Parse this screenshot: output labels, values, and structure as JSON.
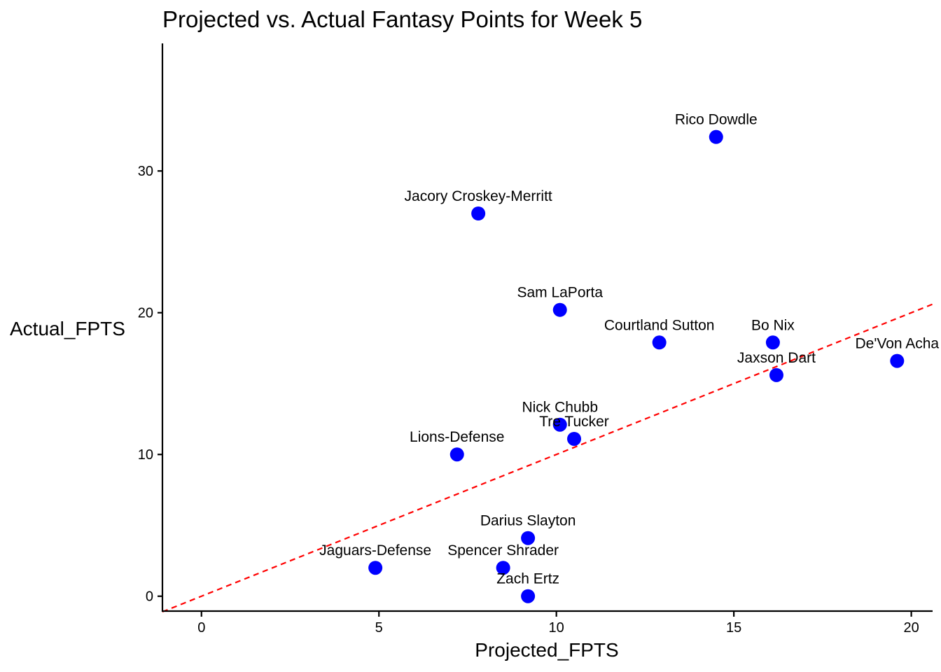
{
  "chart_data": {
    "type": "scatter",
    "title": "Projected vs. Actual Fantasy Points for Week 5",
    "xlabel": "Projected_FPTS",
    "ylabel": "Actual_FPTS",
    "xlim": [
      -1.1,
      20.6
    ],
    "ylim": [
      -1.1,
      39
    ],
    "x_ticks": [
      0,
      5,
      10,
      15,
      20
    ],
    "y_ticks": [
      0,
      10,
      20,
      30
    ],
    "grid": false,
    "point_color": "#0000ff",
    "reference_line": {
      "slope": 1,
      "intercept": 0,
      "color": "#ff0000",
      "style": "dashed"
    },
    "points": [
      {
        "label": "Rico Dowdle",
        "x": 14.5,
        "y": 32.4
      },
      {
        "label": "Jacory Croskey-Merritt",
        "x": 7.8,
        "y": 27.0
      },
      {
        "label": "Sam LaPorta",
        "x": 10.1,
        "y": 20.2
      },
      {
        "label": "Courtland Sutton",
        "x": 12.9,
        "y": 17.9
      },
      {
        "label": "Bo Nix",
        "x": 16.1,
        "y": 17.9
      },
      {
        "label": "De'Von Acha",
        "x": 19.6,
        "y": 16.6
      },
      {
        "label": "Jaxson Dart",
        "x": 16.2,
        "y": 15.6
      },
      {
        "label": "Nick Chubb",
        "x": 10.1,
        "y": 12.1
      },
      {
        "label": "Tre Tucker",
        "x": 10.5,
        "y": 11.1
      },
      {
        "label": "Lions-Defense",
        "x": 7.2,
        "y": 10.0
      },
      {
        "label": "Darius Slayton",
        "x": 9.2,
        "y": 4.1
      },
      {
        "label": "Jaguars-Defense",
        "x": 4.9,
        "y": 2.0
      },
      {
        "label": "Spencer Shrader",
        "x": 8.5,
        "y": 2.0
      },
      {
        "label": "Zach Ertz",
        "x": 9.2,
        "y": 0.0
      }
    ]
  }
}
